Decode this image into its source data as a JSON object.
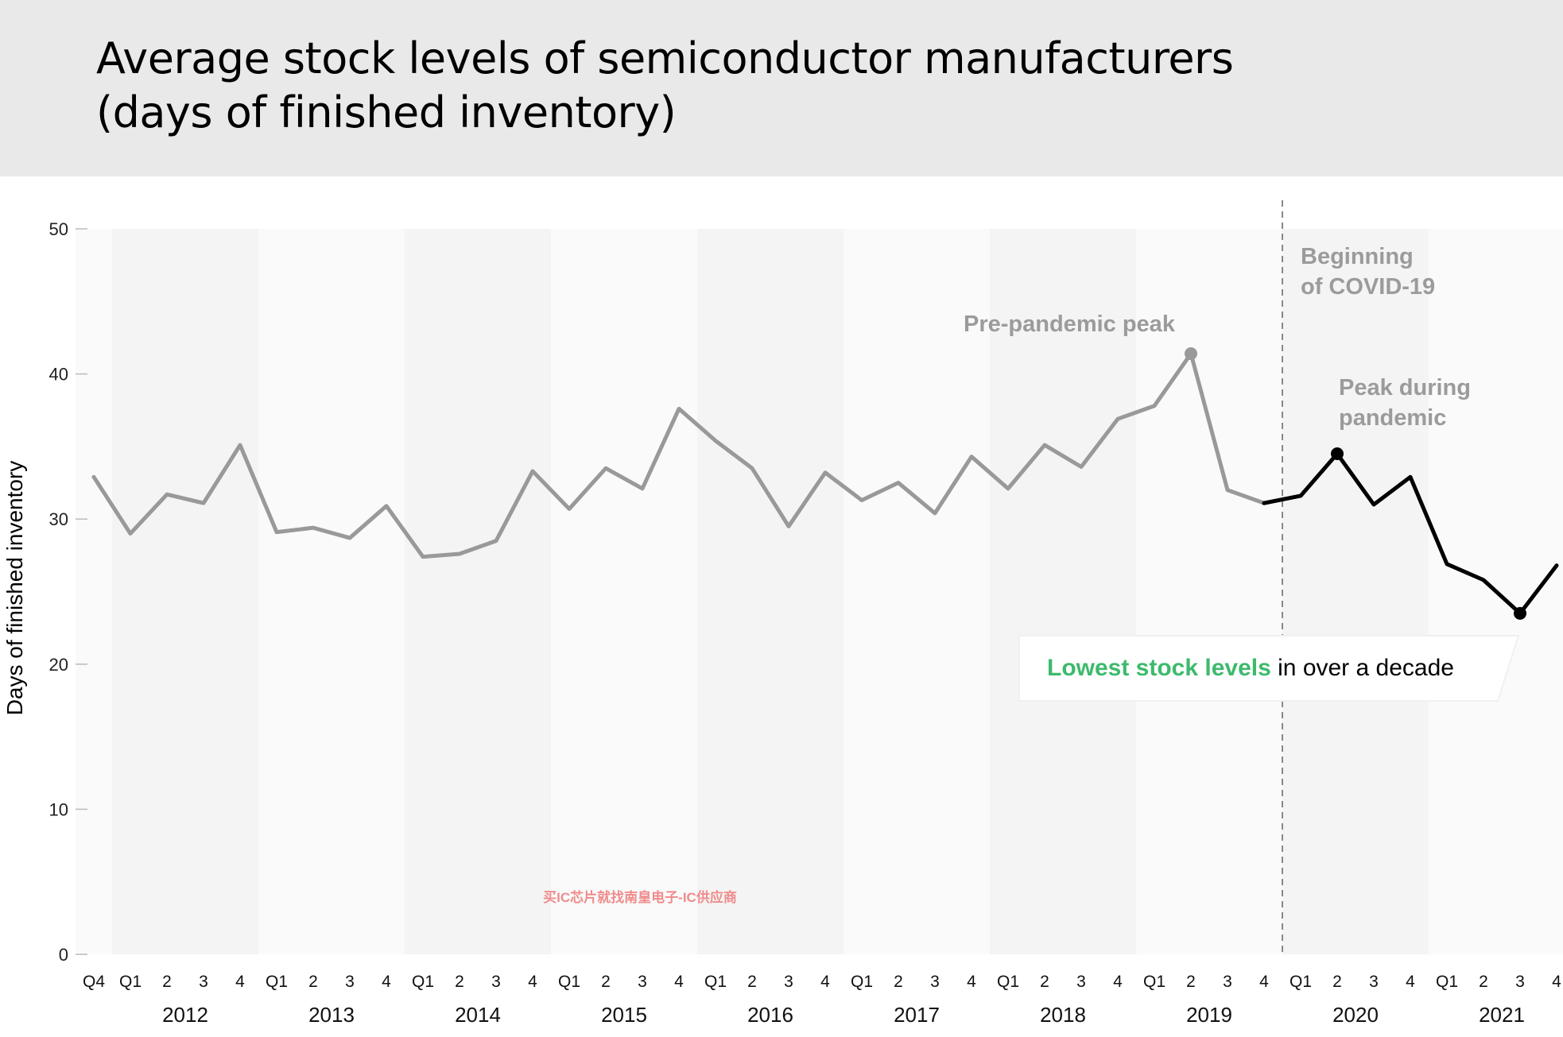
{
  "chart_data": {
    "type": "line",
    "title_lines": [
      "Average stock levels of semiconductor manufacturers",
      "(days of finished inventory)"
    ],
    "ylabel": "Days of finished inventory",
    "ylim": [
      0,
      50
    ],
    "yticks": [
      0,
      10,
      20,
      30,
      40,
      50
    ],
    "quarter_labels": [
      "Q4",
      "Q1",
      "2",
      "3",
      "4",
      "Q1",
      "2",
      "3",
      "4",
      "Q1",
      "2",
      "3",
      "4",
      "Q1",
      "2",
      "3",
      "4",
      "Q1",
      "2",
      "3",
      "4",
      "Q1",
      "2",
      "3",
      "4",
      "Q1",
      "2",
      "3",
      "4",
      "Q1",
      "2",
      "3",
      "4",
      "Q1",
      "2",
      "3",
      "4",
      "Q1",
      "2",
      "3",
      "4"
    ],
    "years": [
      {
        "label": "2012",
        "first_index": 1
      },
      {
        "label": "2013",
        "first_index": 5
      },
      {
        "label": "2014",
        "first_index": 9
      },
      {
        "label": "2015",
        "first_index": 13
      },
      {
        "label": "2016",
        "first_index": 17
      },
      {
        "label": "2017",
        "first_index": 21
      },
      {
        "label": "2018",
        "first_index": 25
      },
      {
        "label": "2019",
        "first_index": 29
      },
      {
        "label": "2020",
        "first_index": 33
      },
      {
        "label": "2021",
        "first_index": 37
      }
    ],
    "series": [
      {
        "values": [
          32.9,
          29.0,
          31.7,
          31.1,
          35.1,
          29.1,
          29.4,
          28.7,
          30.9,
          27.4,
          27.6,
          28.5,
          33.3,
          30.7,
          33.5,
          32.1,
          37.6,
          35.4,
          33.5,
          29.5,
          33.2,
          31.3,
          32.5,
          30.4,
          34.3,
          32.1,
          35.1,
          33.6,
          36.9,
          37.8,
          41.4,
          32.0,
          31.1,
          31.6,
          34.5,
          31.0,
          32.9,
          26.9,
          25.8,
          23.5,
          26.8
        ]
      }
    ],
    "pandemic_start_index": 32,
    "vline_between": [
      32,
      33
    ],
    "highlight_points": [
      {
        "index": 30,
        "value": 41.4,
        "label": "Pre-pandemic peak"
      },
      {
        "index": 34,
        "value": 34.5,
        "label_lines": [
          "Peak during",
          "pandemic"
        ]
      },
      {
        "index": 39,
        "value": 23.5
      }
    ],
    "covid_label_lines": [
      "Beginning",
      "of COVID-19"
    ],
    "callout": {
      "highlight": "Lowest stock levels",
      "rest": " in over a decade"
    },
    "colors": {
      "pre_pandemic_line": "#999999",
      "pandemic_line": "#000000",
      "highlight_text": "#3dba6c",
      "annotation_text": "#9b9b9b",
      "band_dark": "#f4f4f4",
      "band_light": "#fafafa"
    },
    "watermark": "买IC芯片就找南皇电子-IC供应商"
  }
}
